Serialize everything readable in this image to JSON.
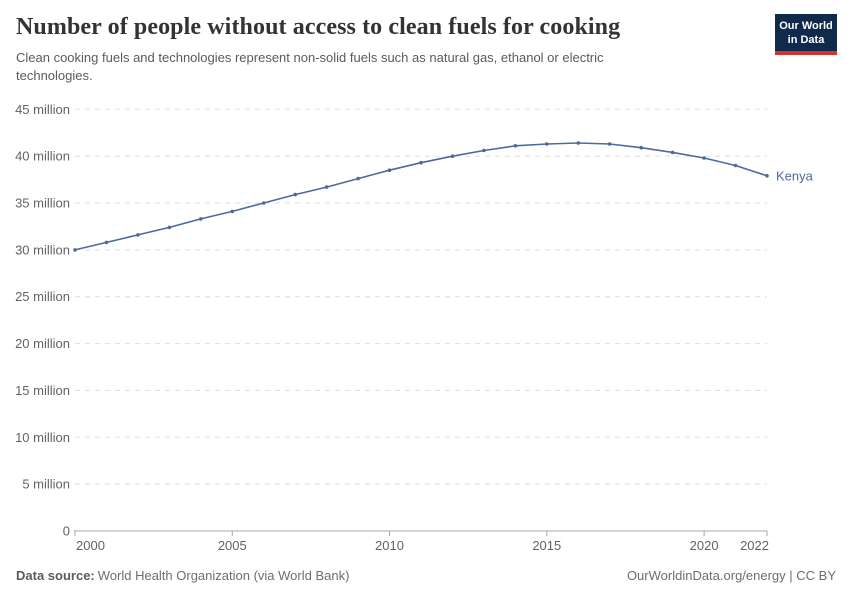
{
  "header": {
    "title": "Number of people without access to clean fuels for cooking",
    "subtitle": "Clean cooking fuels and technologies represent non-solid fuels such as natural gas, ethanol or electric technologies.",
    "logo": {
      "line1": "Our World",
      "line2": "in Data"
    }
  },
  "chart_data": {
    "type": "line",
    "title": "Number of people without access to clean fuels for cooking",
    "xlim": [
      2000,
      2022
    ],
    "ylim": [
      0,
      45
    ],
    "x_ticks": [
      2000,
      2005,
      2010,
      2015,
      2020,
      2022
    ],
    "y_ticks": [
      0,
      5,
      10,
      15,
      20,
      25,
      30,
      35,
      40,
      45
    ],
    "y_tick_format": "{v} million",
    "y_unit": "million people",
    "grid": "horizontal dashed",
    "legend": "entity label at end of line",
    "series": [
      {
        "name": "Kenya",
        "color": "#4c6a9c",
        "x": [
          2000,
          2001,
          2002,
          2003,
          2004,
          2005,
          2006,
          2007,
          2008,
          2009,
          2010,
          2011,
          2012,
          2013,
          2014,
          2015,
          2016,
          2017,
          2018,
          2019,
          2020,
          2021,
          2022
        ],
        "values": [
          30.0,
          30.8,
          31.6,
          32.4,
          33.3,
          34.1,
          35.0,
          35.9,
          36.7,
          37.6,
          38.5,
          39.3,
          40.0,
          40.6,
          41.1,
          41.3,
          41.4,
          41.3,
          40.9,
          40.4,
          39.8,
          39.0,
          37.9
        ]
      }
    ]
  },
  "footer": {
    "source_label": "Data source:",
    "source_text": "World Health Organization (via World Bank)",
    "rights": "OurWorldinData.org/energy | CC BY"
  },
  "colors": {
    "accent_line": "#4c6a9c",
    "title_text": "#333333",
    "body_text": "#5b5b5b",
    "tick_text": "#636363",
    "grid_line": "#dddddd",
    "axis_line": "#a8a8a8",
    "logo_background": "#102a4c",
    "logo_stripe": "#d0342c"
  }
}
